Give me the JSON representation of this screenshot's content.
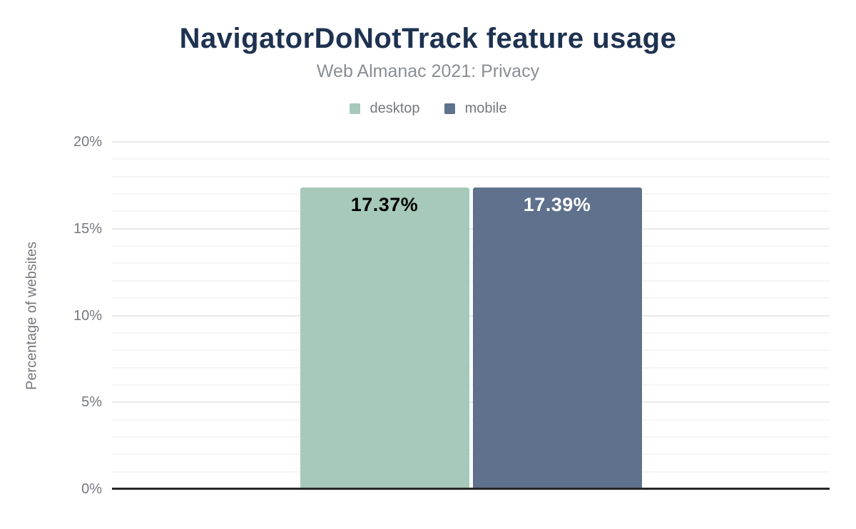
{
  "header": {
    "title": "NavigatorDoNotTrack feature usage",
    "subtitle": "Web Almanac 2021: Privacy"
  },
  "colors": {
    "title": "#1e3250",
    "subtitle_text": "#8a8e93",
    "axis_text": "#75787e",
    "grid_major": "#e9e9e9",
    "grid_minor": "#f5f5f5",
    "axis_line": "#262626",
    "background": "#ffffff",
    "desktop": "#a6c9b9",
    "mobile": "#5f718c"
  },
  "chart_data": {
    "type": "bar",
    "title": "NavigatorDoNotTrack feature usage",
    "subtitle": "Web Almanac 2021: Privacy",
    "categories": [
      "NavigatorDoNotTrack"
    ],
    "series": [
      {
        "name": "desktop",
        "value": 17.37,
        "label": "17.37%",
        "color": "#a6c9b9",
        "label_color": "#000000"
      },
      {
        "name": "mobile",
        "value": 17.39,
        "label": "17.39%",
        "color": "#5f718c",
        "label_color": "#ffffff"
      }
    ],
    "xlabel": "",
    "ylabel": "Percentage of websites",
    "ylim": [
      0,
      20
    ],
    "yticks": [
      {
        "value": 0,
        "label": "0%"
      },
      {
        "value": 5,
        "label": "5%"
      },
      {
        "value": 10,
        "label": "10%"
      },
      {
        "value": 15,
        "label": "15%"
      },
      {
        "value": 20,
        "label": "20%"
      }
    ],
    "minor_grid_step": 1,
    "grid": "horizontal",
    "legend_position": "top"
  }
}
